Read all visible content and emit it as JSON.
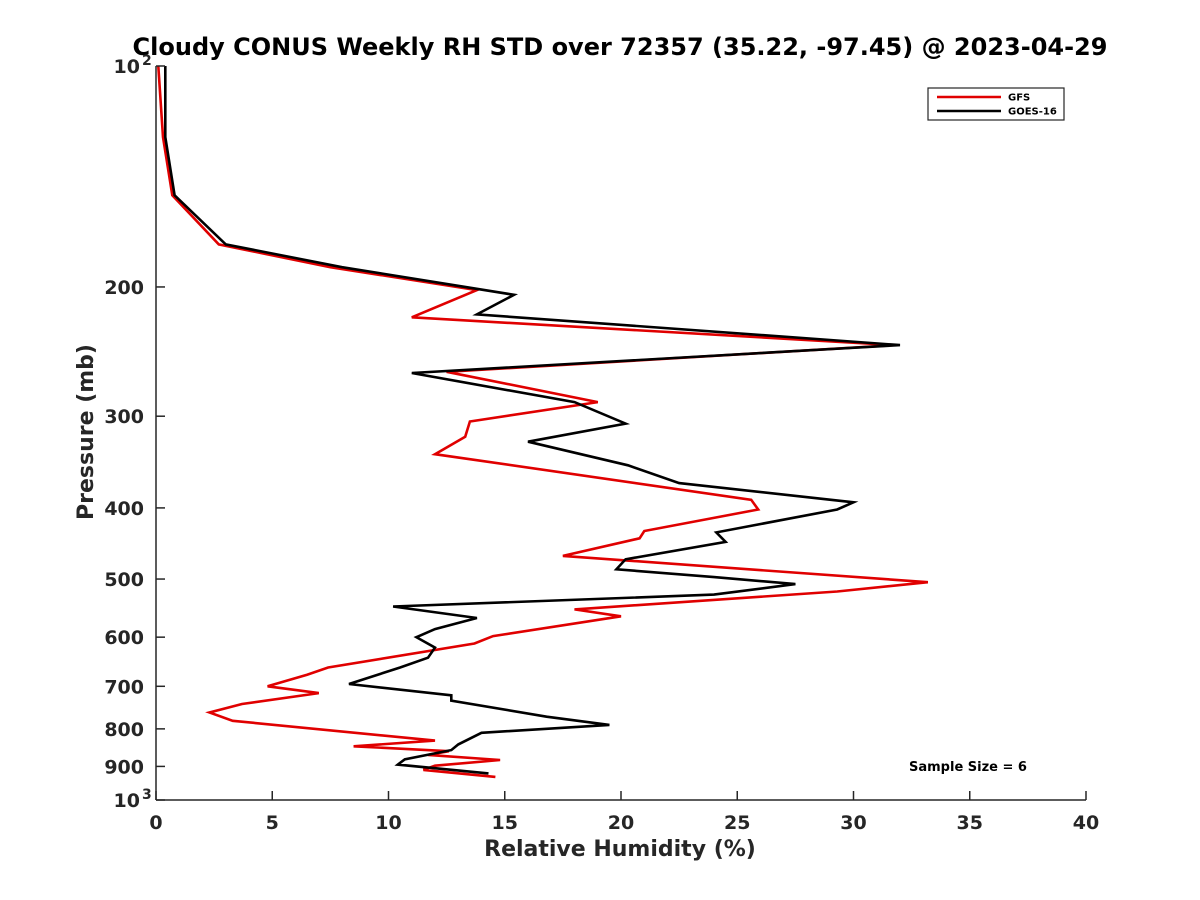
{
  "chart_data": {
    "type": "line",
    "title": "Cloudy CONUS Weekly RH STD over 72357 (35.22, -97.45) @ 2023-04-29",
    "xlabel": "Relative Humidity (%)",
    "ylabel": "Pressure (mb)",
    "xlim": [
      0,
      40
    ],
    "ylim": [
      100,
      1000
    ],
    "y_scale": "log",
    "y_reversed": true,
    "grid": false,
    "legend_position": "top-right",
    "x_ticks": [
      "0",
      "5",
      "10",
      "15",
      "20",
      "25",
      "30",
      "35",
      "40"
    ],
    "y_ticks": [
      {
        "value": 100,
        "label": "10",
        "sup": "2"
      },
      {
        "value": 200,
        "label": "200",
        "sup": ""
      },
      {
        "value": 300,
        "label": "300",
        "sup": ""
      },
      {
        "value": 400,
        "label": "400",
        "sup": ""
      },
      {
        "value": 500,
        "label": "500",
        "sup": ""
      },
      {
        "value": 600,
        "label": "600",
        "sup": ""
      },
      {
        "value": 700,
        "label": "700",
        "sup": ""
      },
      {
        "value": 800,
        "label": "800",
        "sup": ""
      },
      {
        "value": 900,
        "label": "900",
        "sup": ""
      },
      {
        "value": 1000,
        "label": "10",
        "sup": "3"
      }
    ],
    "annotation": "Sample Size = 6",
    "series": [
      {
        "name": "GFS",
        "color": "#e00000",
        "points": [
          [
            0.1,
            100
          ],
          [
            0.3,
            125
          ],
          [
            0.7,
            150
          ],
          [
            2.7,
            175
          ],
          [
            7.5,
            188
          ],
          [
            13.8,
            202
          ],
          [
            11.0,
            220
          ],
          [
            31.8,
            240
          ],
          [
            12.5,
            261
          ],
          [
            19.0,
            287
          ],
          [
            13.5,
            305
          ],
          [
            13.3,
            320
          ],
          [
            12.0,
            338
          ],
          [
            25.6,
            390
          ],
          [
            25.9,
            402
          ],
          [
            21.0,
            430
          ],
          [
            20.8,
            440
          ],
          [
            17.5,
            465
          ],
          [
            33.2,
            505
          ],
          [
            29.3,
            520
          ],
          [
            18.0,
            550
          ],
          [
            20.0,
            562
          ],
          [
            14.5,
            598
          ],
          [
            13.7,
            612
          ],
          [
            7.4,
            660
          ],
          [
            6.5,
            675
          ],
          [
            4.8,
            700
          ],
          [
            7.0,
            715
          ],
          [
            3.7,
            740
          ],
          [
            2.3,
            760
          ],
          [
            3.3,
            780
          ],
          [
            12.0,
            830
          ],
          [
            8.5,
            845
          ],
          [
            12.6,
            858
          ],
          [
            11.7,
            868
          ],
          [
            14.8,
            882
          ],
          [
            12.0,
            898
          ],
          [
            11.5,
            910
          ],
          [
            14.6,
            930
          ]
        ]
      },
      {
        "name": "GOES-16",
        "color": "#000000",
        "points": [
          [
            0.4,
            100
          ],
          [
            0.4,
            125
          ],
          [
            0.8,
            150
          ],
          [
            3.0,
            175
          ],
          [
            8.0,
            188
          ],
          [
            15.4,
            205
          ],
          [
            13.8,
            218
          ],
          [
            32.0,
            240
          ],
          [
            11.0,
            262
          ],
          [
            18.0,
            287
          ],
          [
            20.2,
            307
          ],
          [
            16.0,
            325
          ],
          [
            20.3,
            350
          ],
          [
            22.5,
            370
          ],
          [
            30.0,
            393
          ],
          [
            29.3,
            402
          ],
          [
            24.1,
            432
          ],
          [
            24.5,
            445
          ],
          [
            20.2,
            470
          ],
          [
            19.8,
            485
          ],
          [
            24.0,
            497
          ],
          [
            27.5,
            508
          ],
          [
            24.0,
            525
          ],
          [
            10.2,
            545
          ],
          [
            13.8,
            565
          ],
          [
            12.0,
            585
          ],
          [
            11.2,
            600
          ],
          [
            12.0,
            620
          ],
          [
            11.7,
            640
          ],
          [
            10.5,
            660
          ],
          [
            8.3,
            695
          ],
          [
            12.7,
            720
          ],
          [
            12.7,
            732
          ],
          [
            16.8,
            770
          ],
          [
            19.5,
            790
          ],
          [
            14.0,
            810
          ],
          [
            13.0,
            840
          ],
          [
            12.7,
            855
          ],
          [
            10.7,
            880
          ],
          [
            10.4,
            895
          ],
          [
            14.3,
            920
          ]
        ]
      }
    ]
  }
}
